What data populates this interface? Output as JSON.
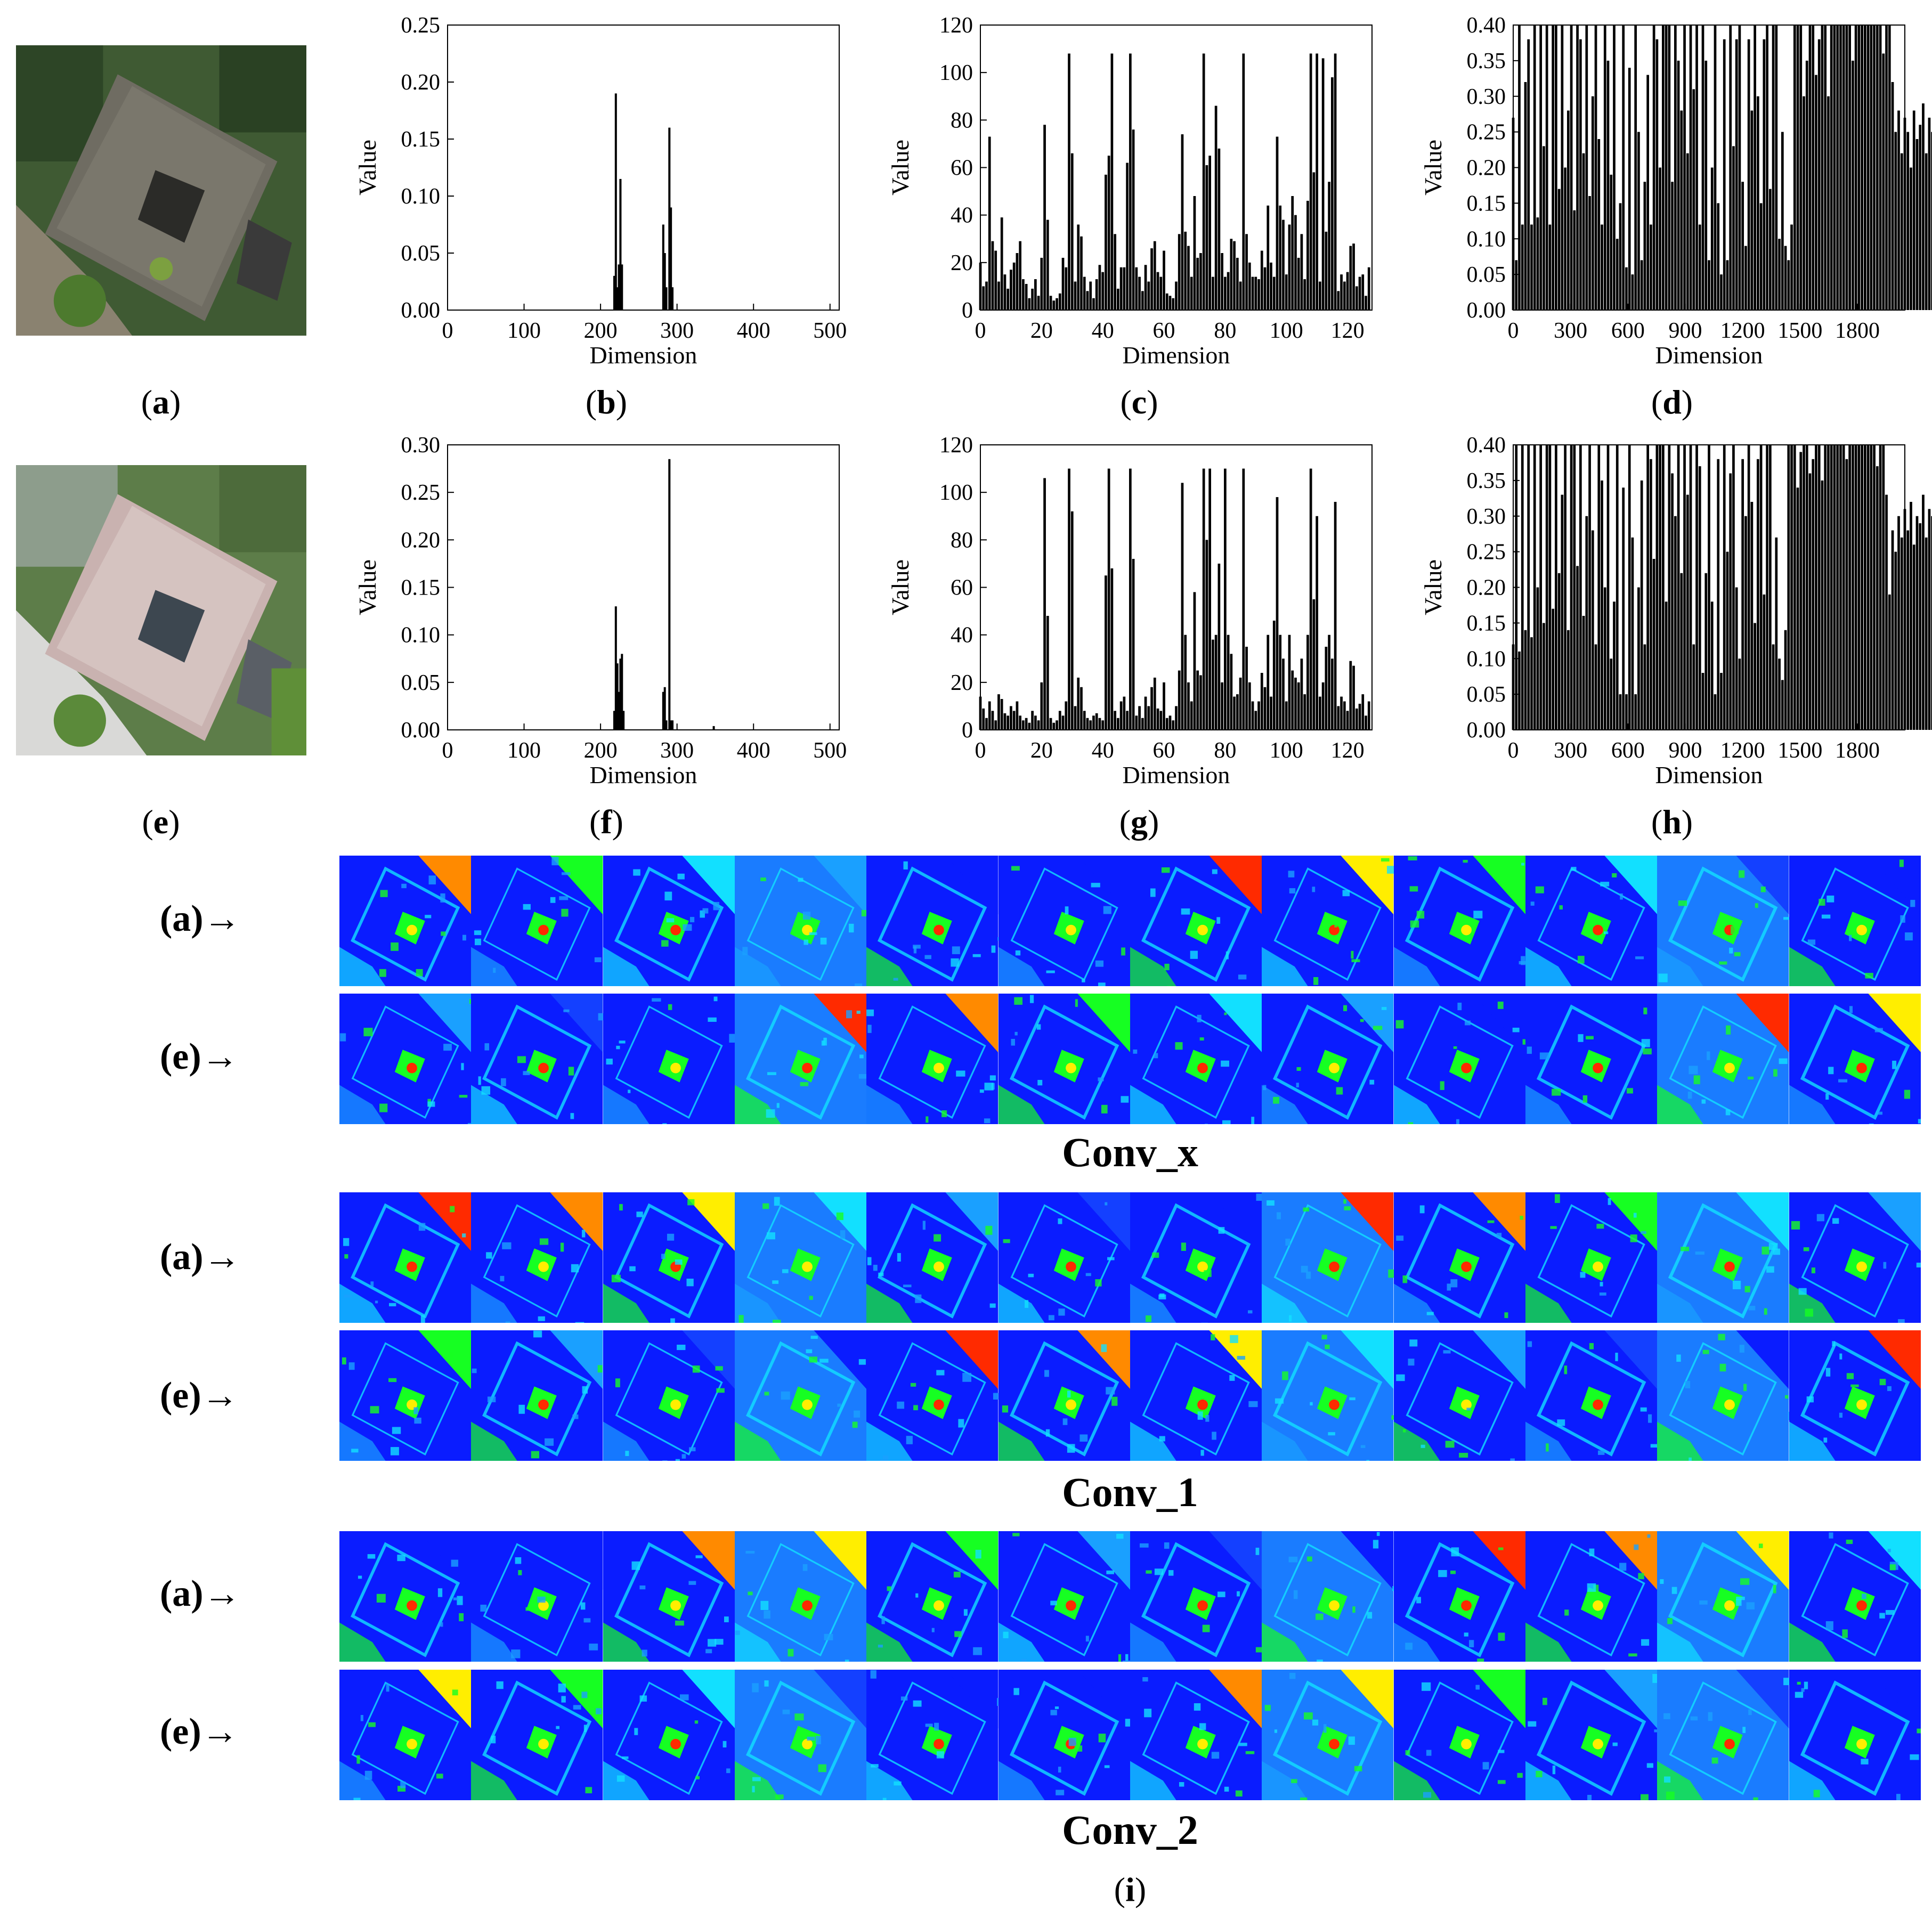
{
  "panel_labels": {
    "a": "(a)",
    "b": "(b)",
    "c": "(c)",
    "d": "(d)",
    "e": "(e)",
    "f": "(f)",
    "g": "(g)",
    "h": "(h)",
    "i": "(i)"
  },
  "feature_maps": {
    "groups": [
      {
        "title": "Conv_x",
        "rows": [
          "(a)→",
          "(e)→"
        ]
      },
      {
        "title": "Conv_1",
        "rows": [
          "(a)→",
          "(e)→"
        ]
      },
      {
        "title": "Conv_2",
        "rows": [
          "(a)→",
          "(e)→"
        ]
      }
    ]
  },
  "chart_data": [
    {
      "id": "b",
      "type": "bar",
      "xlabel": "Dimension",
      "ylabel": "Value",
      "xlim": [
        0,
        512
      ],
      "ylim": [
        0,
        0.25
      ],
      "xticks": [
        0,
        100,
        200,
        300,
        400,
        500
      ],
      "yticks": [
        0.0,
        0.05,
        0.1,
        0.15,
        0.2,
        0.25
      ],
      "ytick_labels": [
        "0.00",
        "0.05",
        "0.10",
        "0.15",
        "0.20",
        "0.25"
      ],
      "x": [
        218,
        220,
        222,
        224,
        226,
        228,
        282,
        284,
        286,
        290,
        292,
        294
      ],
      "values": [
        0.03,
        0.19,
        0.02,
        0.04,
        0.115,
        0.04,
        0.075,
        0.05,
        0.02,
        0.16,
        0.09,
        0.02
      ]
    },
    {
      "id": "c",
      "type": "bar",
      "xlabel": "Dimension",
      "ylabel": "Value",
      "xlim": [
        0,
        128
      ],
      "ylim": [
        0,
        120
      ],
      "xticks": [
        0,
        20,
        40,
        60,
        80,
        100,
        120
      ],
      "yticks": [
        0,
        20,
        40,
        60,
        80,
        100,
        120
      ],
      "ytick_labels": [
        "0",
        "20",
        "40",
        "60",
        "80",
        "100",
        "120"
      ],
      "x": [
        0,
        1,
        2,
        3,
        4,
        5,
        6,
        7,
        8,
        9,
        10,
        11,
        12,
        13,
        14,
        15,
        16,
        17,
        18,
        19,
        20,
        21,
        22,
        23,
        24,
        25,
        26,
        27,
        28,
        29,
        30,
        31,
        32,
        33,
        34,
        35,
        36,
        37,
        38,
        39,
        40,
        41,
        42,
        43,
        44,
        45,
        46,
        47,
        48,
        49,
        50,
        51,
        52,
        53,
        54,
        55,
        56,
        57,
        58,
        59,
        60,
        61,
        62,
        63,
        64,
        65,
        66,
        67,
        68,
        69,
        70,
        71,
        72,
        73,
        74,
        75,
        76,
        77,
        78,
        79,
        80,
        81,
        82,
        83,
        84,
        85,
        86,
        87,
        88,
        89,
        90,
        91,
        92,
        93,
        94,
        95,
        96,
        97,
        98,
        99,
        100,
        101,
        102,
        103,
        104,
        105,
        106,
        107,
        108,
        109,
        110,
        111,
        112,
        113,
        114,
        115,
        116,
        117,
        118,
        119,
        120,
        121,
        122,
        123,
        124,
        125,
        126,
        127
      ],
      "values": [
        20,
        10,
        12,
        73,
        29,
        25,
        12,
        39,
        15,
        9,
        17,
        20,
        24,
        29,
        13,
        11,
        5,
        9,
        13,
        6,
        22,
        78,
        38,
        6,
        4,
        5,
        7,
        22,
        18,
        108,
        66,
        12,
        36,
        31,
        14,
        8,
        12,
        5,
        13,
        19,
        16,
        57,
        65,
        108,
        32,
        9,
        18,
        18,
        62,
        108,
        76,
        18,
        14,
        8,
        19,
        12,
        26,
        29,
        16,
        14,
        25,
        7,
        6,
        5,
        12,
        32,
        74,
        33,
        27,
        14,
        48,
        22,
        24,
        108,
        61,
        65,
        14,
        86,
        68,
        24,
        14,
        16,
        30,
        29,
        22,
        12,
        108,
        32,
        20,
        14,
        14,
        13,
        25,
        18,
        44,
        20,
        14,
        73,
        44,
        38,
        15,
        36,
        48,
        40,
        22,
        32,
        13,
        46,
        108,
        58,
        108,
        12,
        106,
        33,
        54,
        98,
        108,
        8,
        15,
        12,
        16,
        27,
        28,
        10,
        14,
        15,
        6,
        18
      ]
    },
    {
      "id": "d",
      "type": "bar",
      "xlabel": "Dimension",
      "ylabel": "Value",
      "xlim": [
        0,
        2048
      ],
      "ylim": [
        0,
        0.4
      ],
      "xticks": [
        0,
        300,
        600,
        900,
        1200,
        1500,
        1800
      ],
      "yticks": [
        0.0,
        0.05,
        0.1,
        0.15,
        0.2,
        0.25,
        0.3,
        0.35,
        0.4
      ],
      "ytick_labels": [
        "0.00",
        "0.05",
        "0.10",
        "0.15",
        "0.20",
        "0.25",
        "0.30",
        "0.35",
        "0.40"
      ],
      "x0": 0,
      "dx": 16,
      "values": [
        0.27,
        0.07,
        0.4,
        0.12,
        0.32,
        0.38,
        0.12,
        0.4,
        0.13,
        0.4,
        0.23,
        0.4,
        0.12,
        0.4,
        0.4,
        0.17,
        0.4,
        0.2,
        0.28,
        0.4,
        0.14,
        0.4,
        0.38,
        0.22,
        0.4,
        0.16,
        0.3,
        0.4,
        0.24,
        0.12,
        0.4,
        0.35,
        0.19,
        0.4,
        0.1,
        0.15,
        0.4,
        0.06,
        0.34,
        0.05,
        0.4,
        0.25,
        0.07,
        0.18,
        0.33,
        0.12,
        0.4,
        0.38,
        0.2,
        0.4,
        0.4,
        0.4,
        0.18,
        0.4,
        0.35,
        0.28,
        0.4,
        0.22,
        0.4,
        0.31,
        0.4,
        0.12,
        0.4,
        0.35,
        0.07,
        0.2,
        0.4,
        0.15,
        0.05,
        0.38,
        0.07,
        0.4,
        0.23,
        0.38,
        0.4,
        0.18,
        0.09,
        0.38,
        0.28,
        0.4,
        0.3,
        0.15,
        0.38,
        0.4,
        0.17,
        0.4,
        0.4,
        0.1,
        0.25,
        0.09,
        0.07,
        0.12,
        0.4,
        0.4,
        0.4,
        0.3,
        0.35,
        0.4,
        0.4,
        0.33,
        0.38,
        0.4,
        0.4,
        0.3,
        0.4,
        0.4,
        0.4,
        0.4,
        0.4,
        0.4,
        0.4,
        0.35,
        0.4,
        0.4,
        0.4,
        0.4,
        0.4,
        0.4,
        0.4,
        0.4,
        0.4,
        0.36,
        0.4,
        0.4,
        0.32,
        0.25,
        0.28,
        0.22,
        0.27,
        0.25,
        0.2,
        0.28,
        0.24,
        0.26,
        0.29,
        0.22,
        0.27,
        0.25,
        0.3,
        0.23,
        0.27,
        0.21,
        0.26,
        0.28
      ]
    },
    {
      "id": "f",
      "type": "bar",
      "xlabel": "Dimension",
      "ylabel": "Value",
      "xlim": [
        0,
        512
      ],
      "ylim": [
        0,
        0.3
      ],
      "xticks": [
        0,
        100,
        200,
        300,
        400,
        500
      ],
      "yticks": [
        0.0,
        0.05,
        0.1,
        0.15,
        0.2,
        0.25,
        0.3
      ],
      "ytick_labels": [
        "0.00",
        "0.05",
        "0.10",
        "0.15",
        "0.20",
        "0.25",
        "0.30"
      ],
      "x": [
        218,
        220,
        222,
        224,
        226,
        228,
        230,
        282,
        284,
        286,
        290,
        292,
        294,
        348
      ],
      "values": [
        0.02,
        0.13,
        0.07,
        0.04,
        0.075,
        0.08,
        0.02,
        0.04,
        0.045,
        0.01,
        0.285,
        0.01,
        0.01,
        0.004
      ]
    },
    {
      "id": "g",
      "type": "bar",
      "xlabel": "Dimension",
      "ylabel": "Value",
      "xlim": [
        0,
        128
      ],
      "ylim": [
        0,
        120
      ],
      "xticks": [
        0,
        20,
        40,
        60,
        80,
        100,
        120
      ],
      "yticks": [
        0,
        20,
        40,
        60,
        80,
        100,
        120
      ],
      "ytick_labels": [
        "0",
        "20",
        "40",
        "60",
        "80",
        "100",
        "120"
      ],
      "x": [
        0,
        1,
        2,
        3,
        4,
        5,
        6,
        7,
        8,
        9,
        10,
        11,
        12,
        13,
        14,
        15,
        16,
        17,
        18,
        19,
        20,
        21,
        22,
        23,
        24,
        25,
        26,
        27,
        28,
        29,
        30,
        31,
        32,
        33,
        34,
        35,
        36,
        37,
        38,
        39,
        40,
        41,
        42,
        43,
        44,
        45,
        46,
        47,
        48,
        49,
        50,
        51,
        52,
        53,
        54,
        55,
        56,
        57,
        58,
        59,
        60,
        61,
        62,
        63,
        64,
        65,
        66,
        67,
        68,
        69,
        70,
        71,
        72,
        73,
        74,
        75,
        76,
        77,
        78,
        79,
        80,
        81,
        82,
        83,
        84,
        85,
        86,
        87,
        88,
        89,
        90,
        91,
        92,
        93,
        94,
        95,
        96,
        97,
        98,
        99,
        100,
        101,
        102,
        103,
        104,
        105,
        106,
        107,
        108,
        109,
        110,
        111,
        112,
        113,
        114,
        115,
        116,
        117,
        118,
        119,
        120,
        121,
        122,
        123,
        124,
        125,
        126,
        127
      ],
      "values": [
        14,
        9,
        5,
        12,
        8,
        4,
        15,
        13,
        7,
        6,
        10,
        8,
        12,
        6,
        4,
        5,
        3,
        8,
        6,
        4,
        20,
        106,
        48,
        5,
        3,
        4,
        8,
        6,
        12,
        110,
        92,
        10,
        22,
        18,
        8,
        5,
        4,
        6,
        7,
        5,
        4,
        65,
        110,
        68,
        8,
        5,
        12,
        14,
        8,
        110,
        72,
        6,
        10,
        5,
        14,
        10,
        18,
        22,
        9,
        8,
        20,
        5,
        6,
        4,
        10,
        25,
        104,
        40,
        20,
        12,
        58,
        25,
        23,
        110,
        80,
        110,
        38,
        40,
        70,
        20,
        110,
        40,
        32,
        14,
        15,
        22,
        110,
        35,
        20,
        12,
        8,
        12,
        24,
        18,
        40,
        14,
        46,
        98,
        40,
        30,
        12,
        40,
        25,
        22,
        20,
        30,
        15,
        40,
        110,
        55,
        90,
        14,
        20,
        35,
        40,
        30,
        96,
        10,
        14,
        12,
        8,
        29,
        27,
        9,
        11,
        15,
        6,
        12
      ]
    },
    {
      "id": "h",
      "type": "bar",
      "xlabel": "Dimension",
      "ylabel": "Value",
      "xlim": [
        0,
        2048
      ],
      "ylim": [
        0,
        0.4
      ],
      "xticks": [
        0,
        300,
        600,
        900,
        1200,
        1500,
        1800
      ],
      "yticks": [
        0.0,
        0.05,
        0.1,
        0.15,
        0.2,
        0.25,
        0.3,
        0.35,
        0.4
      ],
      "ytick_labels": [
        "0.00",
        "0.05",
        "0.10",
        "0.15",
        "0.20",
        "0.25",
        "0.30",
        "0.35",
        "0.40"
      ],
      "x0": 0,
      "dx": 16,
      "values": [
        0.12,
        0.4,
        0.11,
        0.4,
        0.14,
        0.4,
        0.13,
        0.4,
        0.2,
        0.4,
        0.15,
        0.4,
        0.4,
        0.17,
        0.4,
        0.22,
        0.33,
        0.4,
        0.14,
        0.4,
        0.4,
        0.23,
        0.4,
        0.16,
        0.3,
        0.4,
        0.28,
        0.12,
        0.4,
        0.35,
        0.2,
        0.4,
        0.1,
        0.18,
        0.4,
        0.05,
        0.34,
        0.05,
        0.4,
        0.27,
        0.05,
        0.2,
        0.35,
        0.12,
        0.4,
        0.38,
        0.24,
        0.4,
        0.4,
        0.4,
        0.18,
        0.4,
        0.36,
        0.3,
        0.4,
        0.22,
        0.4,
        0.33,
        0.4,
        0.12,
        0.4,
        0.37,
        0.08,
        0.22,
        0.4,
        0.18,
        0.05,
        0.38,
        0.08,
        0.4,
        0.25,
        0.36,
        0.4,
        0.2,
        0.1,
        0.38,
        0.3,
        0.4,
        0.32,
        0.15,
        0.38,
        0.4,
        0.19,
        0.4,
        0.4,
        0.12,
        0.27,
        0.1,
        0.07,
        0.14,
        0.4,
        0.4,
        0.4,
        0.34,
        0.39,
        0.4,
        0.4,
        0.36,
        0.38,
        0.4,
        0.4,
        0.35,
        0.4,
        0.4,
        0.4,
        0.4,
        0.4,
        0.4,
        0.4,
        0.38,
        0.4,
        0.4,
        0.4,
        0.4,
        0.4,
        0.4,
        0.4,
        0.4,
        0.4,
        0.37,
        0.4,
        0.4,
        0.33,
        0.19,
        0.28,
        0.25,
        0.3,
        0.27,
        0.31,
        0.28,
        0.32,
        0.26,
        0.3,
        0.29,
        0.33,
        0.27,
        0.31,
        0.3,
        0.29,
        0.33,
        0.28,
        0.31
      ]
    }
  ]
}
